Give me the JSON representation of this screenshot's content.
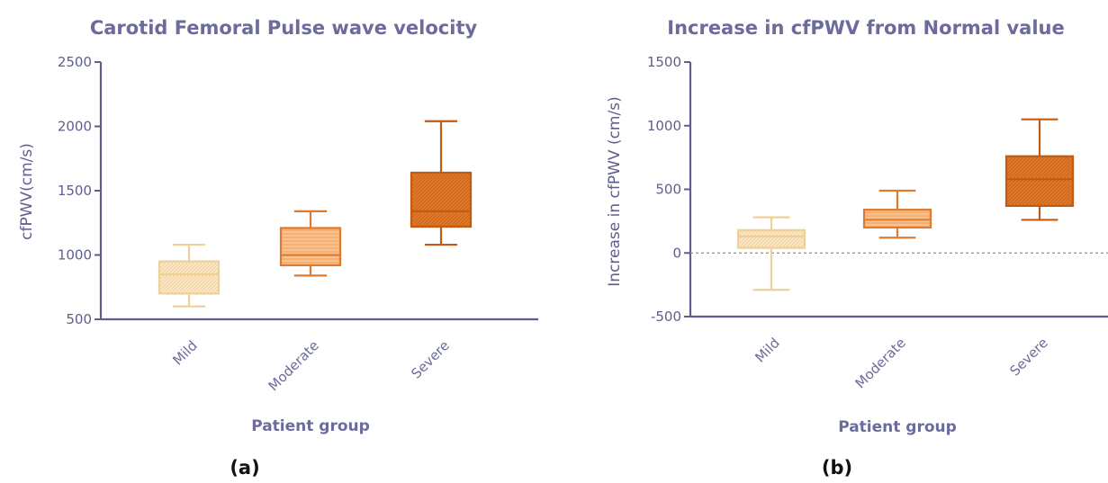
{
  "chart_data": [
    {
      "type": "box",
      "title": "Carotid Femoral Pulse wave velocity",
      "xlabel": "Patient group",
      "ylabel": "cfPWV(cm/s)",
      "ylim": [
        500,
        2500
      ],
      "yticks": [
        500,
        1000,
        1500,
        2000,
        2500
      ],
      "categories": [
        "Mild",
        "Moderate",
        "Severe"
      ],
      "boxes": [
        {
          "category": "Mild",
          "min": 600,
          "q1": 700,
          "median": 850,
          "q3": 950,
          "max": 1080,
          "color": "#fde8c4"
        },
        {
          "category": "Moderate",
          "min": 840,
          "q1": 920,
          "median": 1000,
          "q3": 1210,
          "max": 1340,
          "color": "#f6b074"
        },
        {
          "category": "Severe",
          "min": 1080,
          "q1": 1220,
          "median": 1340,
          "q3": 1640,
          "max": 2040,
          "color": "#e0782a"
        }
      ],
      "panel_label": "(a)"
    },
    {
      "type": "box",
      "title": "Increase in cfPWV from Normal value",
      "xlabel": "Patient group",
      "ylabel": "Increase in cfPWV (cm/s)",
      "ylim": [
        -500,
        1500
      ],
      "yticks": [
        -500,
        0,
        500,
        1000,
        1500
      ],
      "reference_line": 0,
      "categories": [
        "Mild",
        "Moderate",
        "Severe"
      ],
      "boxes": [
        {
          "category": "Mild",
          "min": -290,
          "q1": 40,
          "median": 130,
          "q3": 180,
          "max": 280,
          "color": "#fde8c4"
        },
        {
          "category": "Moderate",
          "min": 120,
          "q1": 200,
          "median": 260,
          "q3": 340,
          "max": 490,
          "color": "#f6b074"
        },
        {
          "category": "Severe",
          "min": 260,
          "q1": 370,
          "median": 580,
          "q3": 760,
          "max": 1050,
          "color": "#e0782a"
        }
      ],
      "panel_label": "(b)"
    }
  ]
}
